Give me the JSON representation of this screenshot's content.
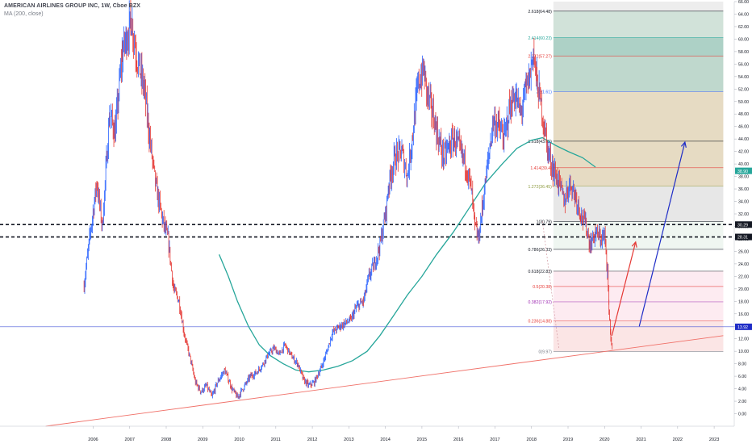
{
  "header": {
    "title": "AMERICAN AIRLINES GROUP INC, 1W, Cboe BZX",
    "indicator": "MA (200, close)"
  },
  "chart_data": {
    "type": "candlestick",
    "y_axis": {
      "min": -2,
      "max": 66,
      "ticks": [
        "0.00",
        "2.00",
        "4.00",
        "6.00",
        "8.00",
        "10.00",
        "12.00",
        "14.00",
        "16.00",
        "18.00",
        "20.00",
        "22.00",
        "24.00",
        "26.00",
        "28.00",
        "30.00",
        "32.00",
        "34.00",
        "36.00",
        "38.00",
        "40.00",
        "42.00",
        "44.00",
        "46.00",
        "48.00",
        "50.00",
        "52.00",
        "54.00",
        "56.00",
        "58.00",
        "60.00",
        "62.00",
        "64.00",
        "66.00"
      ]
    },
    "x_axis": {
      "labels": [
        "2006",
        "2007",
        "2008",
        "2009",
        "2010",
        "2011",
        "2012",
        "2013",
        "2014",
        "2015",
        "2016",
        "2017",
        "2018",
        "2019",
        "2020",
        "2021",
        "2022",
        "2023"
      ]
    },
    "price_path": [
      [
        2005.75,
        20.5
      ],
      [
        2005.9,
        28
      ],
      [
        2006.1,
        37
      ],
      [
        2006.25,
        30
      ],
      [
        2006.45,
        48
      ],
      [
        2006.6,
        45
      ],
      [
        2006.8,
        58
      ],
      [
        2006.95,
        61
      ],
      [
        2007.05,
        63
      ],
      [
        2007.2,
        57
      ],
      [
        2007.4,
        52
      ],
      [
        2007.55,
        44
      ],
      [
        2007.7,
        37
      ],
      [
        2007.9,
        31
      ],
      [
        2008.05,
        28
      ],
      [
        2008.2,
        20
      ],
      [
        2008.35,
        18
      ],
      [
        2008.5,
        12.5
      ],
      [
        2008.65,
        9
      ],
      [
        2008.8,
        5
      ],
      [
        2008.95,
        3.5
      ],
      [
        2009.1,
        4.5
      ],
      [
        2009.25,
        2.7
      ],
      [
        2009.4,
        5
      ],
      [
        2009.6,
        7
      ],
      [
        2009.8,
        4
      ],
      [
        2009.95,
        2.6
      ],
      [
        2010.15,
        4.5
      ],
      [
        2010.3,
        6
      ],
      [
        2010.45,
        6.5
      ],
      [
        2010.6,
        7.5
      ],
      [
        2010.8,
        9.5
      ],
      [
        2010.95,
        10.5
      ],
      [
        2011.1,
        9.5
      ],
      [
        2011.25,
        11
      ],
      [
        2011.45,
        9
      ],
      [
        2011.6,
        8
      ],
      [
        2011.75,
        5.5
      ],
      [
        2011.9,
        4.5
      ],
      [
        2012.05,
        5
      ],
      [
        2012.25,
        7.5
      ],
      [
        2012.4,
        10
      ],
      [
        2012.55,
        13
      ],
      [
        2012.75,
        14
      ],
      [
        2012.9,
        14.5
      ],
      [
        2013.05,
        15
      ],
      [
        2013.2,
        17
      ],
      [
        2013.4,
        18
      ],
      [
        2013.55,
        22
      ],
      [
        2013.7,
        24
      ],
      [
        2013.85,
        27
      ],
      [
        2014.0,
        32
      ],
      [
        2014.1,
        37
      ],
      [
        2014.25,
        41
      ],
      [
        2014.45,
        42
      ],
      [
        2014.6,
        38
      ],
      [
        2014.75,
        45
      ],
      [
        2014.9,
        53
      ],
      [
        2015.05,
        55
      ],
      [
        2015.15,
        51
      ],
      [
        2015.3,
        48
      ],
      [
        2015.45,
        44
      ],
      [
        2015.6,
        41
      ],
      [
        2015.75,
        43
      ],
      [
        2015.9,
        44
      ],
      [
        2016.05,
        42
      ],
      [
        2016.2,
        40
      ],
      [
        2016.35,
        36
      ],
      [
        2016.45,
        30
      ],
      [
        2016.55,
        28
      ],
      [
        2016.65,
        33
      ],
      [
        2016.8,
        40
      ],
      [
        2016.95,
        47
      ],
      [
        2017.1,
        46
      ],
      [
        2017.25,
        44
      ],
      [
        2017.4,
        49
      ],
      [
        2017.55,
        51
      ],
      [
        2017.7,
        48
      ],
      [
        2017.85,
        52
      ],
      [
        2017.95,
        54
      ],
      [
        2018.05,
        58
      ],
      [
        2018.15,
        53
      ],
      [
        2018.3,
        48
      ],
      [
        2018.45,
        42
      ],
      [
        2018.6,
        39
      ],
      [
        2018.75,
        37
      ],
      [
        2018.9,
        34
      ],
      [
        2019.05,
        37
      ],
      [
        2019.2,
        35
      ],
      [
        2019.35,
        32
      ],
      [
        2019.5,
        30
      ],
      [
        2019.6,
        27
      ],
      [
        2019.75,
        29
      ],
      [
        2019.9,
        28
      ],
      [
        2020.0,
        28.5
      ],
      [
        2020.08,
        23
      ],
      [
        2020.12,
        17
      ],
      [
        2020.17,
        12
      ],
      [
        2020.22,
        10
      ]
    ],
    "ma200_label": "MA (200, close)",
    "ma200_path": [
      [
        2009.45,
        25.5
      ],
      [
        2009.7,
        22
      ],
      [
        2009.95,
        18
      ],
      [
        2010.25,
        14
      ],
      [
        2010.55,
        11
      ],
      [
        2010.85,
        9.3
      ],
      [
        2011.2,
        8
      ],
      [
        2011.55,
        7
      ],
      [
        2011.9,
        6.7
      ],
      [
        2012.3,
        7
      ],
      [
        2012.7,
        7.6
      ],
      [
        2013.1,
        8.5
      ],
      [
        2013.5,
        10
      ],
      [
        2013.85,
        12.5
      ],
      [
        2014.2,
        15.5
      ],
      [
        2014.6,
        19
      ],
      [
        2015.0,
        22
      ],
      [
        2015.4,
        25.5
      ],
      [
        2015.85,
        29
      ],
      [
        2016.3,
        33
      ],
      [
        2016.75,
        37
      ],
      [
        2017.2,
        40
      ],
      [
        2017.6,
        42.5
      ],
      [
        2018.0,
        43.8
      ],
      [
        2018.3,
        44.2
      ],
      [
        2018.65,
        43
      ],
      [
        2019.0,
        42
      ],
      [
        2019.4,
        41
      ],
      [
        2019.75,
        39.5
      ]
    ],
    "long_trendline": [
      [
        2004.7,
        -2.0
      ],
      [
        2023.25,
        12.5
      ]
    ],
    "current_price_line": 13.92,
    "last_price_arrow": [
      [
        2020.2,
        12.5
      ],
      [
        2020.85,
        27.5
      ]
    ],
    "target_arrow": [
      [
        2020.95,
        14.0
      ],
      [
        2022.2,
        43.5
      ]
    ],
    "support_lines": [
      {
        "value": 30.29,
        "label": "30.29",
        "tag_color": "#131722"
      },
      {
        "value": 28.31,
        "label": "28.31",
        "tag_color": "#131722"
      }
    ],
    "price_tags": [
      {
        "value": 38.9,
        "label": "38.90",
        "color": "#26a69a"
      },
      {
        "value": 13.92,
        "label": "13.92",
        "color": "#1f2dc7"
      }
    ],
    "fib": {
      "x_start": 2018.6,
      "x_end": 2023.25,
      "ref_x_start": 2018.6,
      "levels": [
        {
          "ratio_label": "0(9.97)",
          "value": 9.97,
          "color": "#f4c7c3",
          "label_color": "#787b86"
        },
        {
          "ratio_label": "0.236(14.88)",
          "value": 14.88,
          "color": "#fbe4e4",
          "label_color": "#e53935"
        },
        {
          "ratio_label": "0.382(17.92)",
          "value": 17.92,
          "color": "#fde9ef",
          "label_color": "#9c27b0"
        },
        {
          "ratio_label": "0.5(20.38)",
          "value": 20.38,
          "color": "#fde9ef",
          "label_color": "#e53935"
        },
        {
          "ratio_label": "0.618(22.83)",
          "value": 22.83,
          "color": "#ffffff",
          "label_color": "#131722"
        },
        {
          "ratio_label": "0.786(26.33)",
          "value": 26.33,
          "color": "#eaf3ee",
          "label_color": "#131722"
        },
        {
          "ratio_label": "1(30.79)",
          "value": 30.79,
          "color": "#e8e8e8",
          "label_color": "#131722"
        },
        {
          "ratio_label": "1.272(36.45)",
          "value": 36.45,
          "color": "#e8e8e8",
          "label_color": "#8d9a3f"
        },
        {
          "ratio_label": "1.414(39.4)",
          "value": 39.4,
          "color": "#e9dcc1",
          "label_color": "#e53935"
        },
        {
          "ratio_label": "1.618(43.65)",
          "value": 43.65,
          "color": "#e0d9c0",
          "label_color": "#131722"
        },
        {
          "ratio_label": "2(51.61)",
          "value": 51.61,
          "color": "#c3dbd0",
          "label_color": "#2962ff"
        },
        {
          "ratio_label": "2.272(57.27)",
          "value": 57.27,
          "color": "#b7d8cc",
          "label_color": "#e53935"
        },
        {
          "ratio_label": "2.414(60.23)",
          "value": 60.23,
          "color": "#9fd5c3",
          "label_color": "#26a69a"
        },
        {
          "ratio_label": "2.618(64.48)",
          "value": 64.48,
          "color": "#ececec",
          "label_color": "#131722"
        }
      ],
      "band_fills": [
        {
          "from": 9.97,
          "to": 14.88,
          "color": "#fbe4e4"
        },
        {
          "from": 14.88,
          "to": 22.83,
          "color": "#fdeaf0"
        },
        {
          "from": 22.83,
          "to": 26.33,
          "color": "#ffffff"
        },
        {
          "from": 26.33,
          "to": 30.79,
          "color": "#eef5f0"
        },
        {
          "from": 30.79,
          "to": 36.45,
          "color": "#e6e6e6"
        },
        {
          "from": 36.45,
          "to": 51.61,
          "color": "#e5d9c0"
        },
        {
          "from": 51.61,
          "to": 57.27,
          "color": "#bcd6ca"
        },
        {
          "from": 57.27,
          "to": 60.23,
          "color": "#a9cfc3"
        },
        {
          "from": 60.23,
          "to": 64.48,
          "color": "#cfe0d7"
        },
        {
          "from": 64.48,
          "to": 66.0,
          "color": "#ececec"
        }
      ]
    },
    "colors": {
      "up": "#2962ff",
      "down": "#e53935",
      "ma": "#26a69a",
      "trend": "#f07068",
      "arrow_red": "#e53935",
      "arrow_blue": "#1f2dc7",
      "axis_text": "#131722",
      "grid": "#f0f3fa"
    }
  }
}
